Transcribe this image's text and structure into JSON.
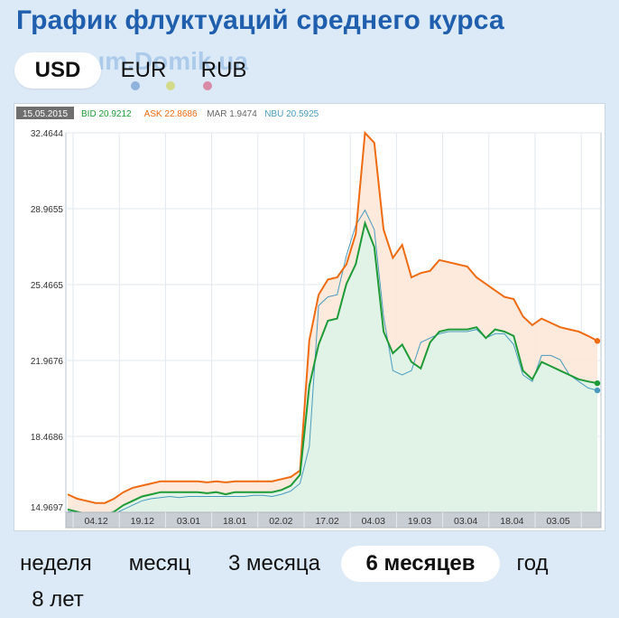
{
  "page": {
    "title": "График флуктуаций среднего курса",
    "watermark": "Forum.Domik.ua"
  },
  "currency_tabs": [
    {
      "label": "USD",
      "active": true,
      "dot_color": ""
    },
    {
      "label": "EUR",
      "active": false,
      "dot_color": "#8fb3dc"
    },
    {
      "label": "RUB",
      "active": false,
      "dot_color": "#d98aa6"
    }
  ],
  "extra_dot_color": "#d3da8a",
  "period_tabs": [
    {
      "label": "неделя",
      "active": false
    },
    {
      "label": "месяц",
      "active": false
    },
    {
      "label": "3 месяца",
      "active": false
    },
    {
      "label": "6 месяцев",
      "active": true
    },
    {
      "label": "год",
      "active": false
    },
    {
      "label": "8 лет",
      "active": false
    }
  ],
  "chart_data": {
    "type": "line",
    "legend": {
      "date": "15.05.2015",
      "items": [
        {
          "key": "bid",
          "label": "BID",
          "value": "20.9212"
        },
        {
          "key": "ask",
          "label": "ASK",
          "value": "22.8686"
        },
        {
          "key": "mar",
          "label": "MAR",
          "value": "1.9474"
        },
        {
          "key": "nbu",
          "label": "NBU",
          "value": "20.5925"
        }
      ]
    },
    "colors": {
      "ask": "#ef6b12",
      "bid": "#1e9a37",
      "nbu": "#4a9bbf",
      "mar": "#666666"
    },
    "ylim": [
      14.9697,
      32.4644
    ],
    "y_ticks": [
      "32.4644",
      "28.9655",
      "25.4665",
      "21.9676",
      "18.4686",
      "14.9697"
    ],
    "x_ticks": [
      "04.12",
      "19.12",
      "03.01",
      "18.01",
      "02.02",
      "17.02",
      "04.03",
      "19.03",
      "03.04",
      "18.04",
      "03.05"
    ],
    "grid": true,
    "series": [
      {
        "key": "ask",
        "name": "ASK",
        "values": [
          15.8,
          15.6,
          15.5,
          15.4,
          15.4,
          15.6,
          15.9,
          16.1,
          16.2,
          16.3,
          16.4,
          16.4,
          16.4,
          16.4,
          16.4,
          16.35,
          16.4,
          16.35,
          16.4,
          16.4,
          16.4,
          16.4,
          16.4,
          16.5,
          16.6,
          16.9,
          22.9,
          25.0,
          25.7,
          25.8,
          26.4,
          27.8,
          32.46,
          32.0,
          28.0,
          26.7,
          27.3,
          25.8,
          26.0,
          26.1,
          26.6,
          26.5,
          26.4,
          26.3,
          25.8,
          25.5,
          25.2,
          24.9,
          24.8,
          24.0,
          23.6,
          23.9,
          23.7,
          23.5,
          23.4,
          23.3,
          23.1,
          22.87
        ]
      },
      {
        "key": "bid",
        "name": "BID",
        "values": [
          15.1,
          15.0,
          14.9,
          14.9,
          14.85,
          15.0,
          15.3,
          15.5,
          15.7,
          15.8,
          15.9,
          15.9,
          15.9,
          15.9,
          15.9,
          15.85,
          15.9,
          15.8,
          15.9,
          15.9,
          15.9,
          15.9,
          15.9,
          16.0,
          16.2,
          16.7,
          20.8,
          22.7,
          23.8,
          23.9,
          25.5,
          26.4,
          28.3,
          27.2,
          23.3,
          22.3,
          22.7,
          21.9,
          21.6,
          22.8,
          23.3,
          23.4,
          23.4,
          23.4,
          23.5,
          23.0,
          23.4,
          23.3,
          23.1,
          21.5,
          21.1,
          21.9,
          21.7,
          21.5,
          21.3,
          21.1,
          21.0,
          20.92
        ]
      },
      {
        "key": "nbu",
        "name": "NBU",
        "values": [
          15.0,
          14.95,
          14.9,
          14.85,
          14.85,
          14.9,
          15.1,
          15.3,
          15.5,
          15.6,
          15.65,
          15.7,
          15.65,
          15.7,
          15.7,
          15.7,
          15.7,
          15.7,
          15.7,
          15.7,
          15.75,
          15.75,
          15.7,
          15.8,
          15.95,
          16.3,
          18.0,
          24.5,
          24.9,
          25.0,
          26.8,
          28.2,
          28.9,
          28.0,
          24.0,
          21.5,
          21.3,
          21.5,
          22.8,
          23.0,
          23.2,
          23.3,
          23.3,
          23.3,
          23.4,
          23.0,
          23.2,
          23.2,
          22.7,
          21.3,
          21.0,
          22.2,
          22.2,
          22.0,
          21.3,
          21.0,
          20.7,
          20.59
        ]
      }
    ]
  }
}
